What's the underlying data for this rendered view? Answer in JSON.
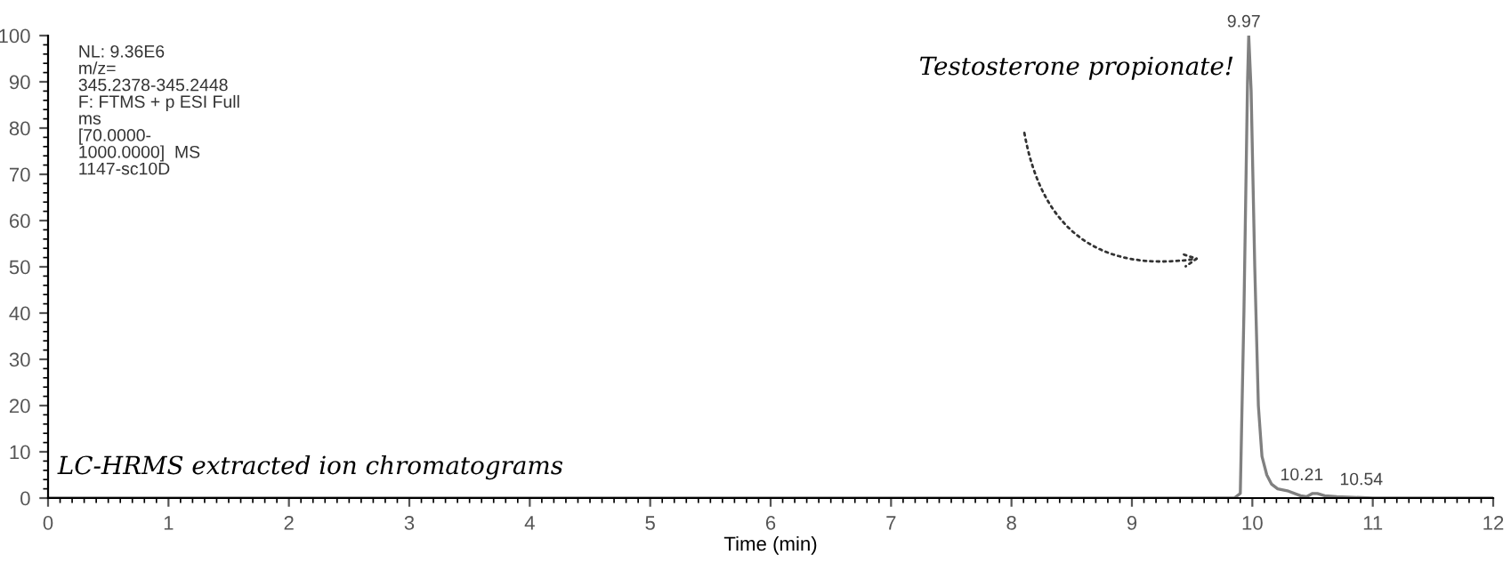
{
  "chart_data": {
    "type": "line",
    "xlabel": "Time (min)",
    "x": [
      0,
      2,
      4,
      6,
      8,
      9.85,
      9.9,
      9.93,
      9.96,
      9.97,
      9.99,
      10.02,
      10.05,
      10.08,
      10.12,
      10.16,
      10.21,
      10.3,
      10.4,
      10.45,
      10.5,
      10.54,
      10.6,
      10.7,
      11,
      12
    ],
    "series": [
      {
        "color": "#808080",
        "values": [
          0,
          0,
          0,
          0,
          0,
          0,
          1,
          40,
          90,
          100,
          88,
          50,
          20,
          9,
          5,
          3,
          2,
          1.5,
          0.5,
          0.3,
          1,
          1,
          0.5,
          0.3,
          0,
          0
        ]
      }
    ],
    "xlim": [
      0,
      12
    ],
    "ylim": [
      0,
      100
    ],
    "xticks": [
      0,
      1,
      2,
      3,
      4,
      5,
      6,
      7,
      8,
      9,
      10,
      11,
      12
    ],
    "yticks": [
      0,
      10,
      20,
      30,
      40,
      50,
      60,
      70,
      80,
      90,
      100
    ],
    "grid": false,
    "legend": false,
    "marker": "none",
    "line_style": "solid",
    "annotations": [
      {
        "text": "9.97",
        "x": 9.97,
        "y": 100
      },
      {
        "text": "10.21",
        "x": 10.21,
        "y": 2
      },
      {
        "text": "10.54",
        "x": 10.54,
        "y": 1
      },
      "NL: 9.36E6\nm/z=\n345.2378-345.2448\nF: FTMS + p ESI Full\nms\n[70.0000-\n1000.0000]  MS\n1147-sc10D",
      "Testosterone propionate!",
      "LC-HRMS extracted ion chromatograms"
    ]
  }
}
